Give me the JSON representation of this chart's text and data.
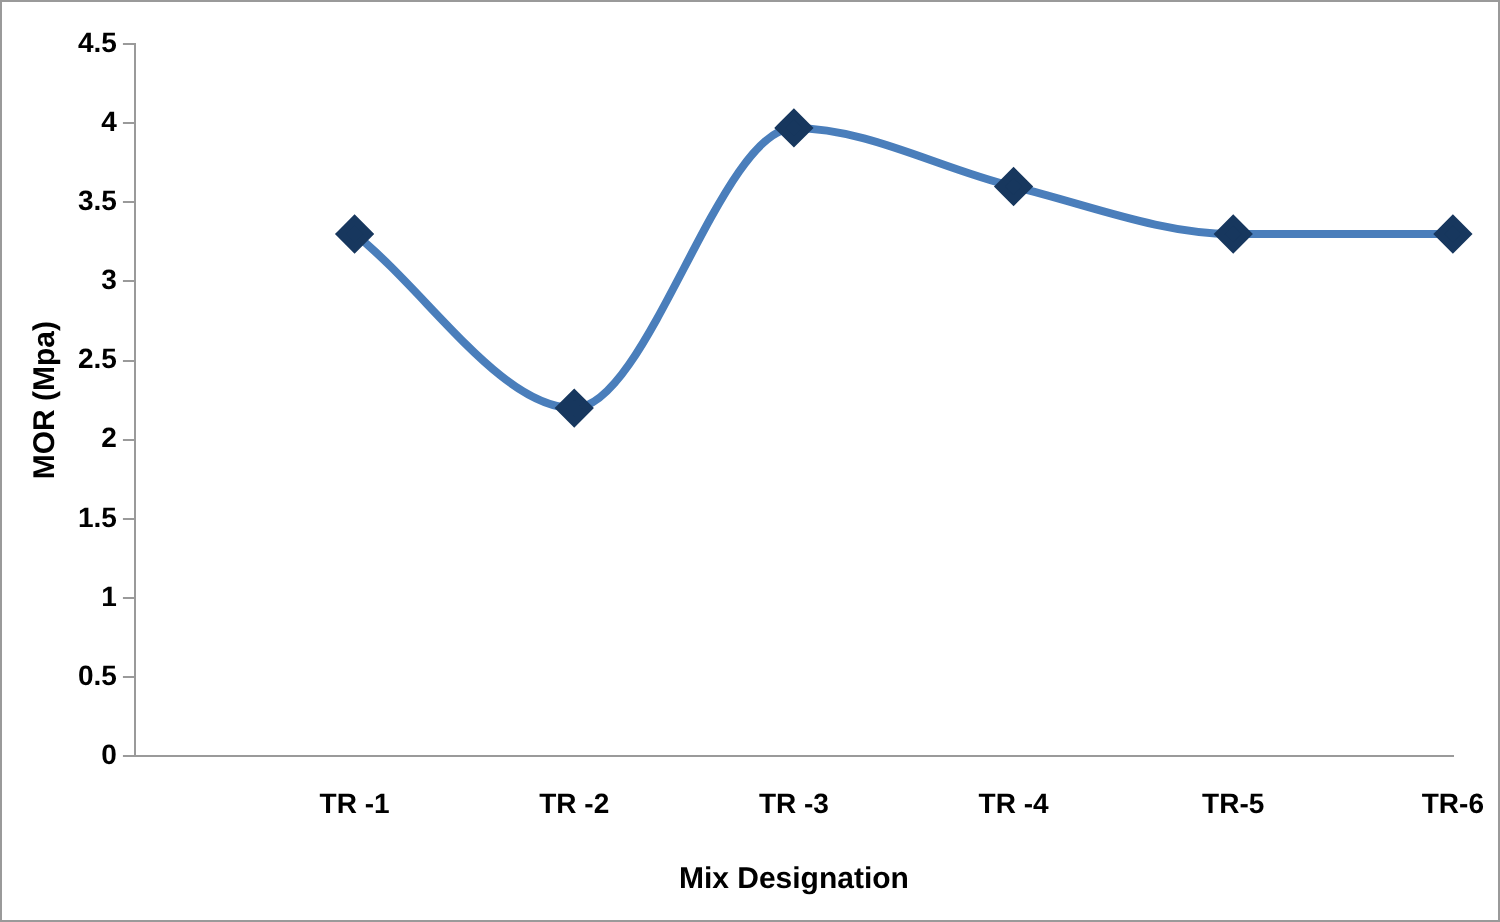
{
  "chart_data": {
    "type": "line",
    "xlabel": "Mix Designation",
    "ylabel": "MOR (Mpa)",
    "categories": [
      null,
      "TR -1",
      "TR -2",
      "TR -3",
      "TR -4",
      "TR-5",
      "TR-6"
    ],
    "series": [
      {
        "color": "#4a7ebb",
        "values": [
          null,
          3.3,
          2.2,
          3.97,
          3.6,
          3.3,
          3.3
        ]
      }
    ],
    "ylim": [
      0,
      4.5
    ],
    "yticks": [
      0,
      0.5,
      1,
      1.5,
      2,
      2.5,
      3,
      3.5,
      4,
      4.5
    ],
    "grid": false,
    "legend": false,
    "marker": "diamond",
    "line_style": "solid"
  }
}
